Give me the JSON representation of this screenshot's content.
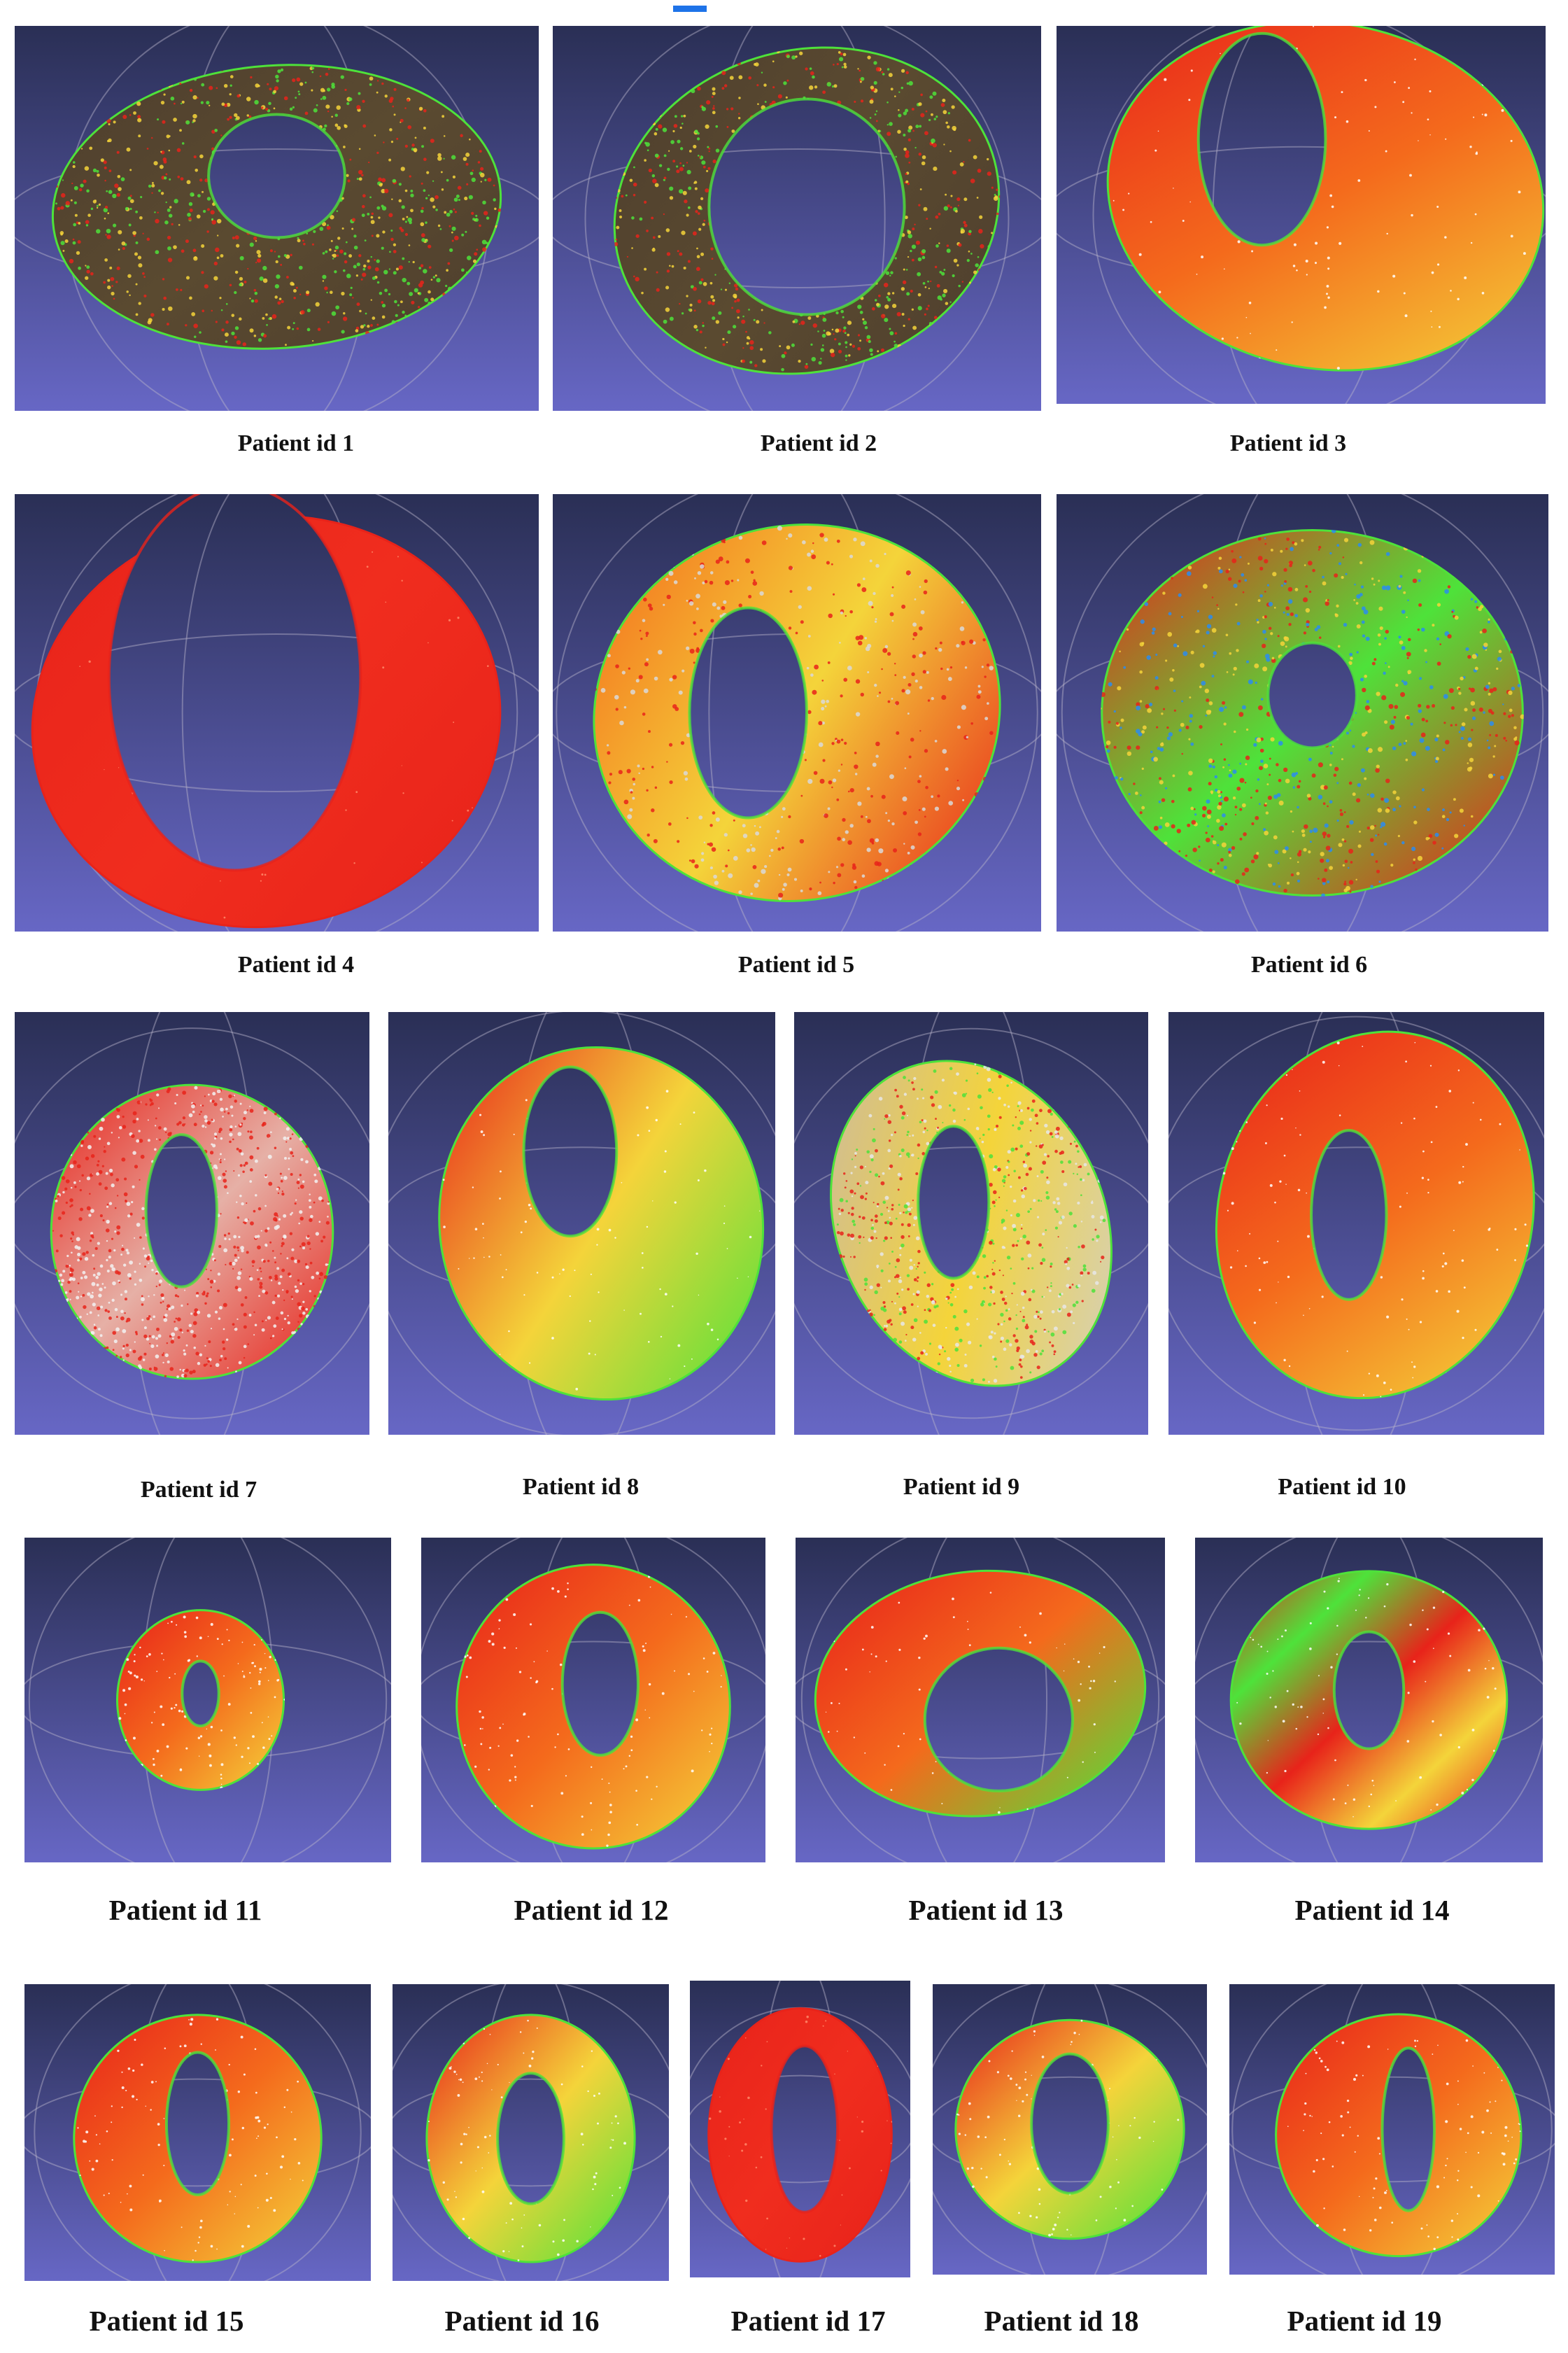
{
  "figure": {
    "colors": {
      "background_top": "#2a2f55",
      "background_bottom": "#6767c5",
      "accent_dash": "#1e73e8",
      "red": "#e8231a",
      "orange": "#f46a1c",
      "yellow": "#f4d43a",
      "green": "#4ee23a",
      "blue": "#2a8cf0",
      "dark_olive": "#4f3f2e"
    },
    "panels": [
      {
        "caption": "Patient id 1",
        "style": "dark-speckled"
      },
      {
        "caption": "Patient id 2",
        "style": "dark-speckled"
      },
      {
        "caption": "Patient id 3",
        "style": "red-yellow"
      },
      {
        "caption": "Patient id 4",
        "style": "solid-red"
      },
      {
        "caption": "Patient id 5",
        "style": "yellow-red-speckled"
      },
      {
        "caption": "Patient id 6",
        "style": "red-green-speckled"
      },
      {
        "caption": "Patient id 7",
        "style": "red-white-speckled"
      },
      {
        "caption": "Patient id 8",
        "style": "red-yellow-green"
      },
      {
        "caption": "Patient id 9",
        "style": "grey-speckled"
      },
      {
        "caption": "Patient id 10",
        "style": "red-yellow"
      },
      {
        "caption": "Patient id 11",
        "style": "red-yellow"
      },
      {
        "caption": "Patient id 12",
        "style": "red-yellow"
      },
      {
        "caption": "Patient id 13",
        "style": "red-green"
      },
      {
        "caption": "Patient id 14",
        "style": "striped"
      },
      {
        "caption": "Patient id 15",
        "style": "red-yellow"
      },
      {
        "caption": "Patient id 16",
        "style": "red-yellow-green"
      },
      {
        "caption": "Patient id 17",
        "style": "solid-red"
      },
      {
        "caption": "Patient id 18",
        "style": "red-yellow-green"
      },
      {
        "caption": "Patient id 19",
        "style": "red-yellow"
      }
    ]
  }
}
